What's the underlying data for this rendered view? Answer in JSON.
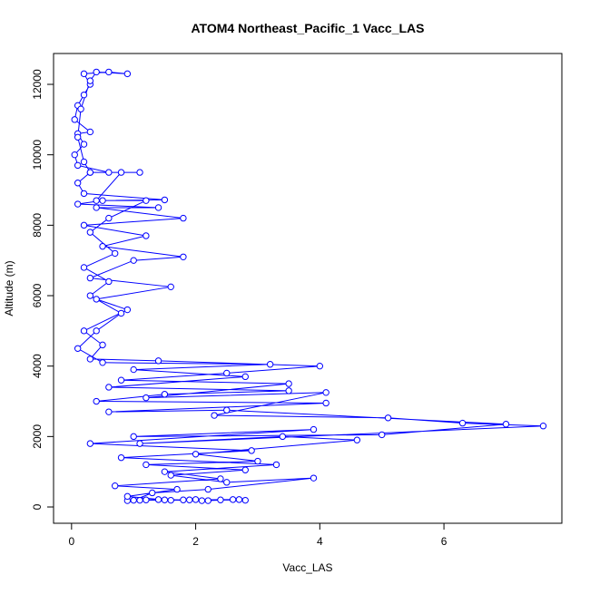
{
  "chart_data": {
    "type": "line",
    "title": "ATOM4 Northeast_Pacific_1 Vacc_LAS",
    "xlabel": "Vacc_LAS",
    "ylabel": "Altitude (m)",
    "x": [
      0.9,
      1.2,
      1.6,
      2.0,
      2.4,
      2.8,
      2.6,
      2.2,
      1.8,
      1.4,
      1.0,
      1.3,
      2.2,
      3.9,
      2.5,
      1.6,
      2.8,
      1.2,
      3.0,
      2.0,
      4.6,
      3.4,
      1.1,
      7.6,
      6.3,
      5.1,
      2.3,
      4.1,
      1.2,
      3.5,
      0.8,
      2.5,
      4.0,
      1.4,
      0.3,
      0.5,
      0.2,
      0.9,
      0.4,
      1.6,
      0.3,
      1.0,
      1.8,
      0.5,
      1.2,
      0.2,
      1.8,
      0.4,
      1.4,
      0.1,
      0.5,
      1.5,
      0.2,
      0.1,
      0.3,
      1.1,
      0.6,
      0.1,
      0.05,
      0.2,
      0.1,
      0.3,
      0.05,
      0.1,
      0.2,
      0.3,
      0.2,
      0.6,
      0.9,
      0.4,
      0.3,
      0.15,
      0.1,
      0.2,
      0.3,
      0.8,
      0.4,
      1.2,
      0.6,
      0.3,
      0.7,
      0.2,
      0.6,
      0.3,
      0.8,
      0.4,
      0.1,
      0.5,
      3.2,
      1.0,
      2.8,
      0.6,
      3.5,
      1.5,
      0.4,
      4.1,
      0.6,
      2.5,
      7.0,
      5.0,
      1.0,
      3.9,
      0.3,
      2.9,
      0.8,
      3.3,
      1.5,
      2.4,
      0.7,
      1.7,
      0.9,
      1.5,
      2.1,
      2.7,
      1.9,
      1.1
    ],
    "series": [
      {
        "color": "#0000ff",
        "values": [
          180,
          200,
          190,
          210,
          200,
          190,
          210,
          180,
          200,
          210,
          190,
          400,
          500,
          820,
          700,
          900,
          1050,
          1200,
          1300,
          1500,
          1900,
          2000,
          1800,
          2300,
          2380,
          2530,
          2600,
          3250,
          3100,
          3500,
          3600,
          3800,
          4000,
          4150,
          4200,
          4600,
          5000,
          5600,
          5900,
          6250,
          6500,
          7000,
          7100,
          7400,
          7700,
          8000,
          8200,
          8500,
          8500,
          8600,
          8700,
          8720,
          8900,
          9200,
          9500,
          9500,
          9500,
          9700,
          10000,
          10300,
          10600,
          10650,
          11000,
          11400,
          11700,
          12000,
          12300,
          12350,
          12300,
          12350,
          12100,
          11300,
          10500,
          9800,
          9500,
          9500,
          8700,
          8700,
          8200,
          7800,
          7200,
          6800,
          6400,
          6000,
          5500,
          5000,
          4500,
          4100,
          4050,
          3900,
          3700,
          3400,
          3300,
          3200,
          3000,
          2950,
          2700,
          2750,
          2350,
          2050,
          2000,
          2200,
          1800,
          1600,
          1400,
          1200,
          1000,
          800,
          600,
          500,
          300,
          200,
          180,
          210,
          200,
          190
        ]
      }
    ],
    "xlim": [
      -0.29,
      7.9
    ],
    "xticks": [
      0,
      2,
      4,
      6
    ],
    "ylim": [
      -463,
      12876
    ],
    "yticks": [
      0,
      2000,
      4000,
      6000,
      8000,
      10000,
      12000
    ]
  }
}
